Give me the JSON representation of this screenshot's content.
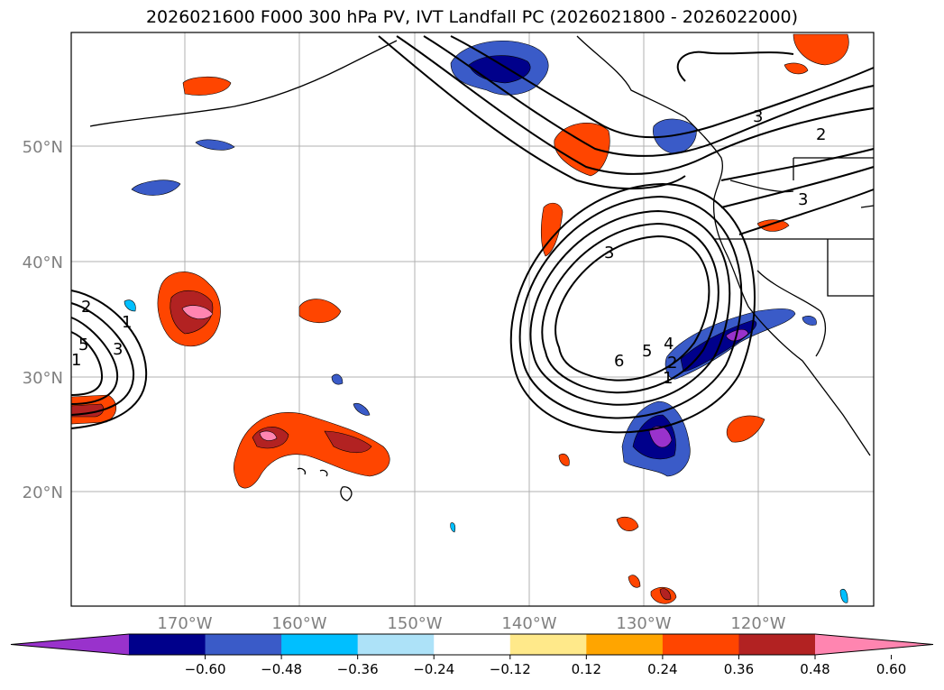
{
  "title": "2026021600 F000 300 hPa PV, IVT Landfall PC (2026021800 - 2026022000)",
  "lat_labels": [
    "50°N",
    "40°N",
    "30°N",
    "20°N"
  ],
  "lon_labels": [
    "170°W",
    "160°W",
    "150°W",
    "140°W",
    "130°W",
    "120°W"
  ],
  "colorbar": {
    "ticks": [
      "−0.60",
      "−0.48",
      "−0.36",
      "−0.24",
      "−0.12",
      "0.12",
      "0.24",
      "0.36",
      "0.48",
      "0.60"
    ],
    "colors": [
      "#9932CC",
      "#00008B",
      "#3A5BC8",
      "#00BFFF",
      "#ADE2F8",
      "#FFFFFF",
      "#FFE98A",
      "#FFA500",
      "#FF4500",
      "#B22222",
      "#FF85B0"
    ]
  },
  "contour_labels": [
    "3",
    "2",
    "3",
    "3",
    "6",
    "5",
    "4",
    "1",
    "2",
    "1",
    "5",
    "3",
    "2",
    "1"
  ]
}
